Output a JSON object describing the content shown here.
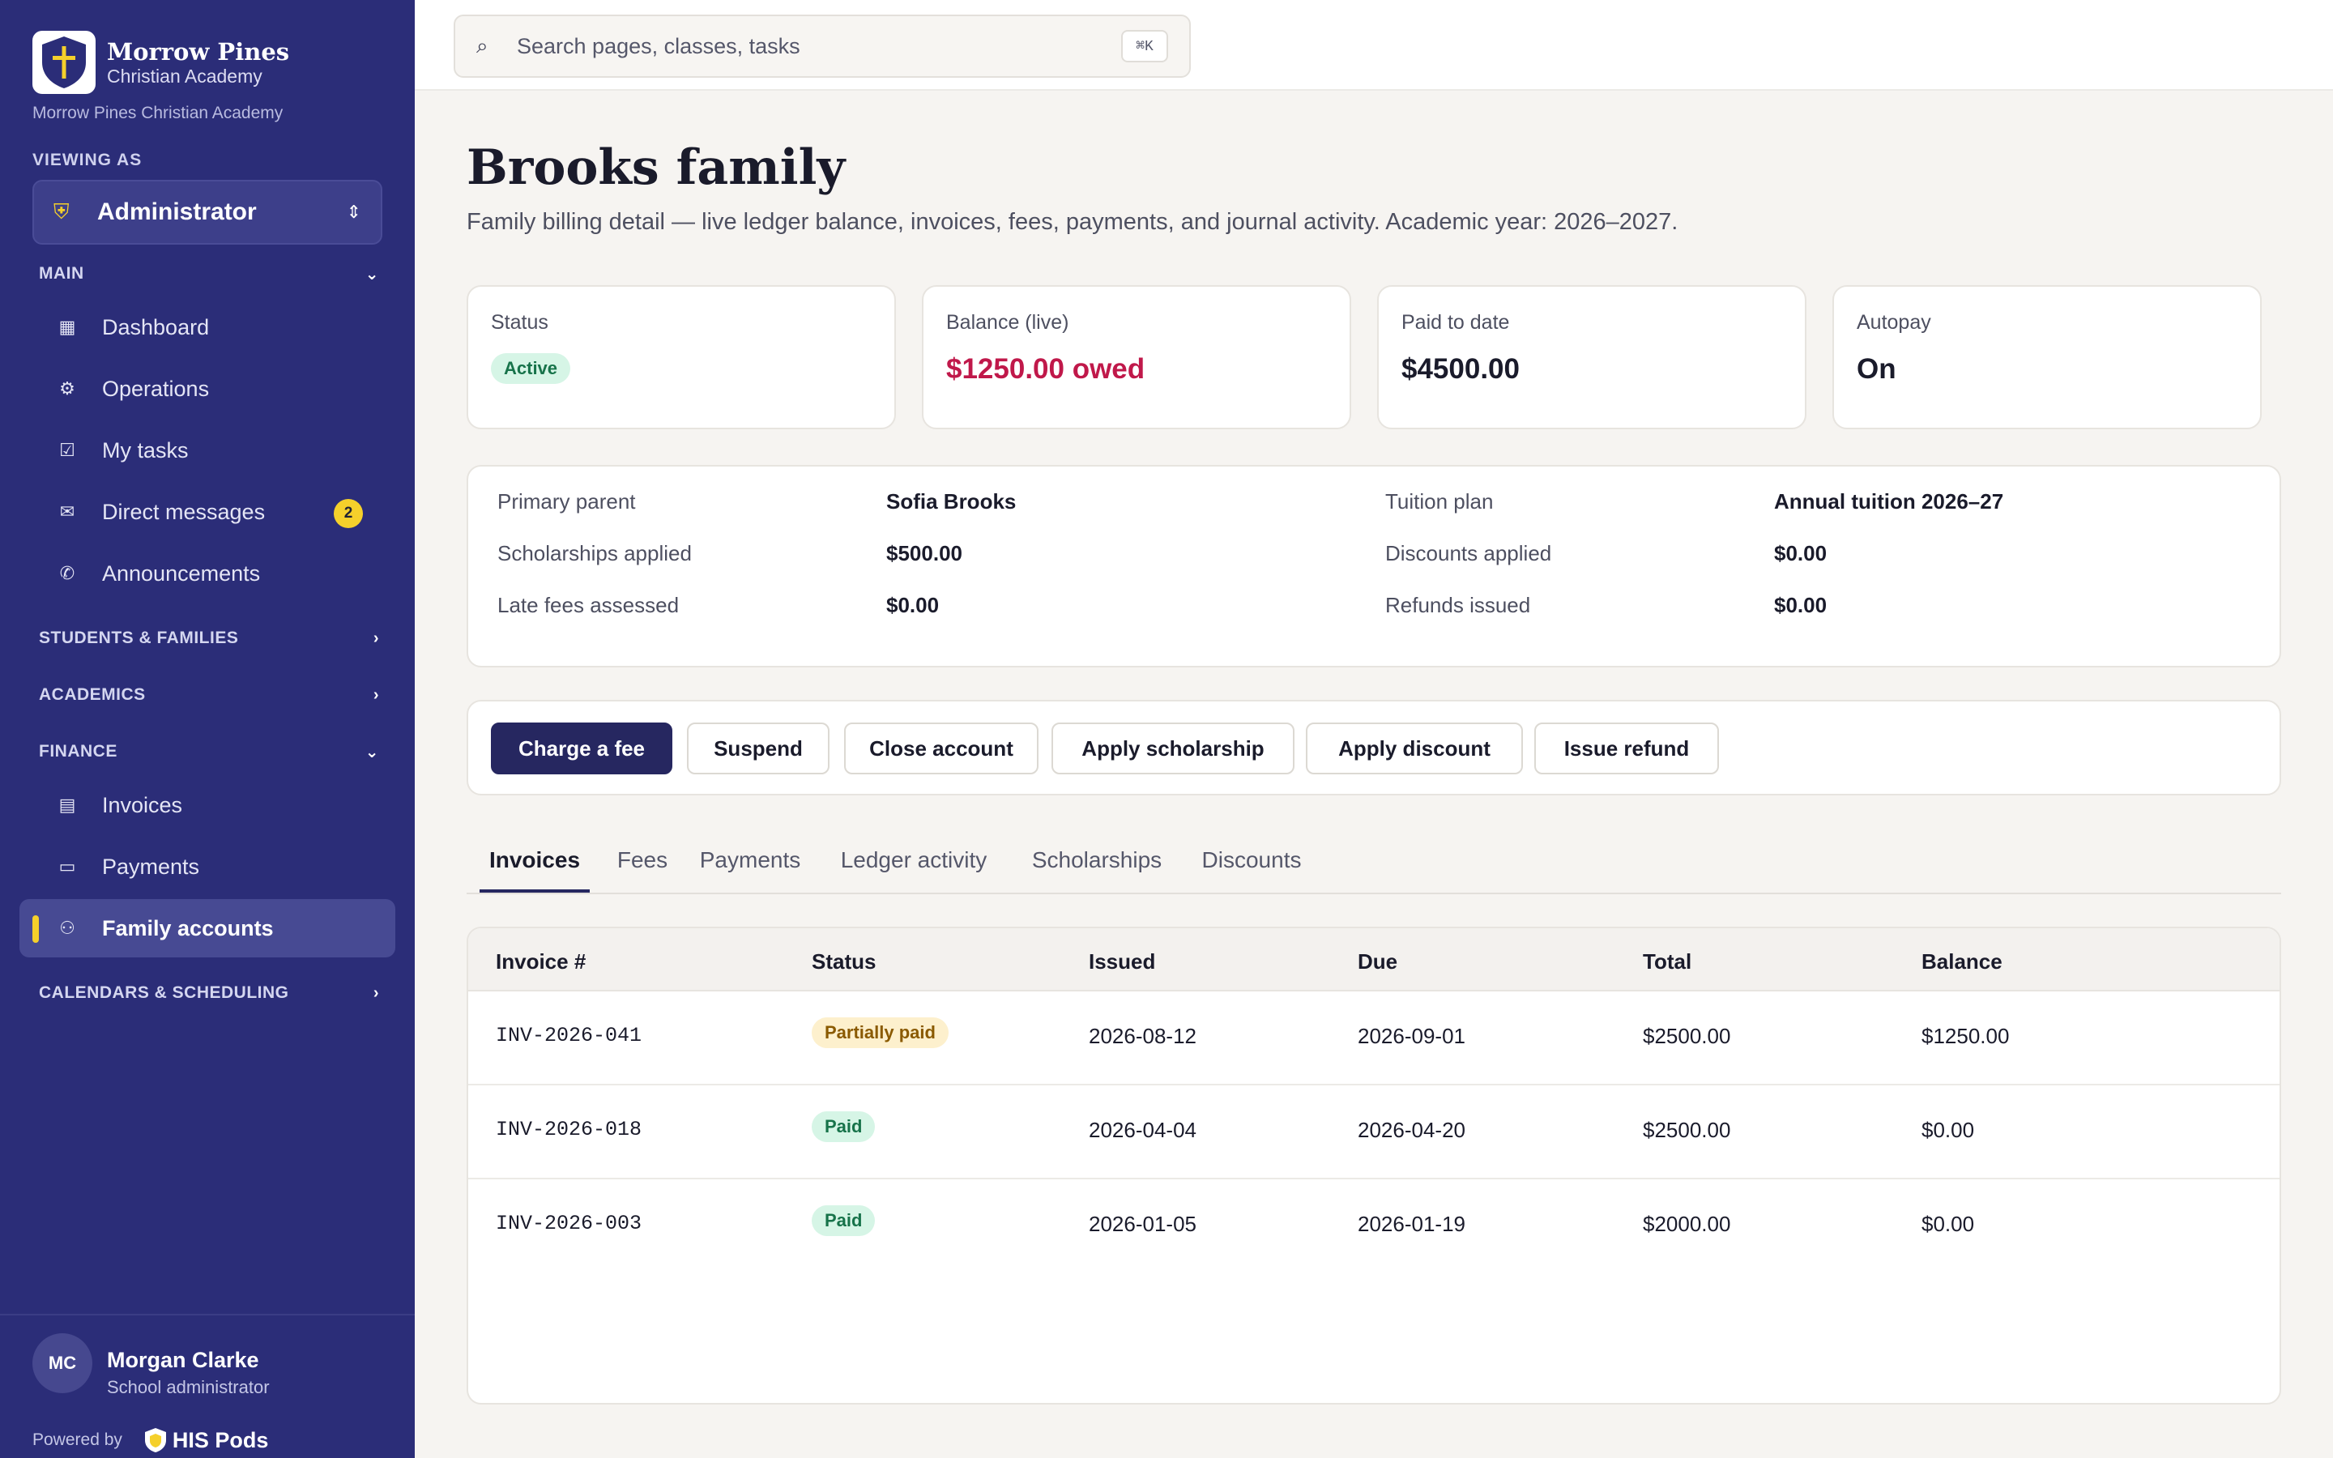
{
  "brand": {
    "name": "Morrow Pines",
    "sub": "Christian Academy",
    "caption": "Morrow Pines Christian Academy"
  },
  "viewing": {
    "label": "VIEWING AS",
    "role": "Administrator"
  },
  "sidebar": {
    "main_label": "MAIN",
    "main_items": [
      {
        "label": "Dashboard",
        "icon": "dashboard-icon"
      },
      {
        "label": "Operations",
        "icon": "operations-icon"
      },
      {
        "label": "My tasks",
        "icon": "tasks-icon"
      },
      {
        "label": "Direct messages",
        "icon": "messages-icon",
        "badge": "2"
      },
      {
        "label": "Announcements",
        "icon": "megaphone-icon"
      }
    ],
    "students_label": "STUDENTS & FAMILIES",
    "academics_label": "ACADEMICS",
    "finance_label": "FINANCE",
    "finance_items": [
      {
        "label": "Invoices",
        "icon": "invoice-icon"
      },
      {
        "label": "Payments",
        "icon": "payment-icon"
      },
      {
        "label": "Family accounts",
        "icon": "family-icon",
        "active": true
      }
    ],
    "calendars_label": "CALENDARS & SCHEDULING"
  },
  "user": {
    "initials": "MC",
    "name": "Morgan Clarke",
    "role": "School administrator"
  },
  "footer": {
    "powered": "Powered by",
    "product": "HIS Pods"
  },
  "search": {
    "placeholder": "Search pages, classes, tasks",
    "shortcut": "⌘K"
  },
  "page": {
    "title": "Brooks family",
    "subtitle": "Family billing detail — live ledger balance, invoices, fees, payments, and journal activity. Academic year: 2026–2027."
  },
  "stats": {
    "status_label": "Status",
    "status_value": "Active",
    "balance_label": "Balance (live)",
    "balance_value": "$1250.00 owed",
    "paid_label": "Paid to date",
    "paid_value": "$4500.00",
    "autopay_label": "Autopay",
    "autopay_value": "On"
  },
  "details": {
    "primary_parent_label": "Primary parent",
    "primary_parent": "Sofia Brooks",
    "tuition_plan_label": "Tuition plan",
    "tuition_plan": "Annual tuition 2026–27",
    "scholarships_label": "Scholarships applied",
    "scholarships": "$500.00",
    "discounts_label": "Discounts applied",
    "discounts": "$0.00",
    "late_fees_label": "Late fees assessed",
    "late_fees": "$0.00",
    "refunds_label": "Refunds issued",
    "refunds": "$0.00"
  },
  "actions": {
    "charge": "Charge a fee",
    "suspend": "Suspend",
    "close": "Close account",
    "scholarship": "Apply scholarship",
    "discount": "Apply discount",
    "refund": "Issue refund"
  },
  "tabs": [
    "Invoices",
    "Fees",
    "Payments",
    "Ledger activity",
    "Scholarships",
    "Discounts"
  ],
  "table": {
    "headers": [
      "Invoice #",
      "Status",
      "Issued",
      "Due",
      "Total",
      "Balance"
    ],
    "rows": [
      [
        "INV-2026-041",
        "Partially paid",
        "2026-08-12",
        "2026-09-01",
        "$2500.00",
        "$1250.00"
      ],
      [
        "INV-2026-018",
        "Paid",
        "2026-04-04",
        "2026-04-20",
        "$2500.00",
        "$0.00"
      ],
      [
        "INV-2026-003",
        "Paid",
        "2026-01-05",
        "2026-01-19",
        "$2000.00",
        "$0.00"
      ]
    ]
  },
  "colors": {
    "sidebar": "#2b2d78",
    "accent": "#f5d02b",
    "primary_button": "#262760",
    "owed": "#c0184a"
  }
}
